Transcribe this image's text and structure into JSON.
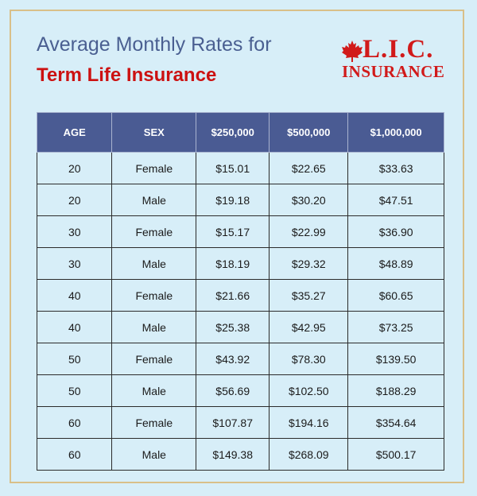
{
  "heading": {
    "line1": "Average Monthly Rates for",
    "line2": "Term Life Insurance"
  },
  "logo": {
    "main": "L.I.C.",
    "sub": "INSURANCE",
    "icon": "maple-leaf-icon"
  },
  "colors": {
    "background": "#d7eef8",
    "frame": "#d9c089",
    "heading_blue": "#4a5f91",
    "heading_red": "#cc1111",
    "header_row": "#4a5b93",
    "logo_red": "#d11a1a"
  },
  "table": {
    "headers": [
      "AGE",
      "SEX",
      "$250,000",
      "$500,000",
      "$1,000,000"
    ],
    "rows": [
      [
        "20",
        "Female",
        "$15.01",
        "$22.65",
        "$33.63"
      ],
      [
        "20",
        "Male",
        "$19.18",
        "$30.20",
        "$47.51"
      ],
      [
        "30",
        "Female",
        "$15.17",
        "$22.99",
        "$36.90"
      ],
      [
        "30",
        "Male",
        "$18.19",
        "$29.32",
        "$48.89"
      ],
      [
        "40",
        "Female",
        "$21.66",
        "$35.27",
        "$60.65"
      ],
      [
        "40",
        "Male",
        "$25.38",
        "$42.95",
        "$73.25"
      ],
      [
        "50",
        "Female",
        "$43.92",
        "$78.30",
        "$139.50"
      ],
      [
        "50",
        "Male",
        "$56.69",
        "$102.50",
        "$188.29"
      ],
      [
        "60",
        "Female",
        "$107.87",
        "$194.16",
        "$354.64"
      ],
      [
        "60",
        "Male",
        "$149.38",
        "$268.09",
        "$500.17"
      ]
    ]
  }
}
